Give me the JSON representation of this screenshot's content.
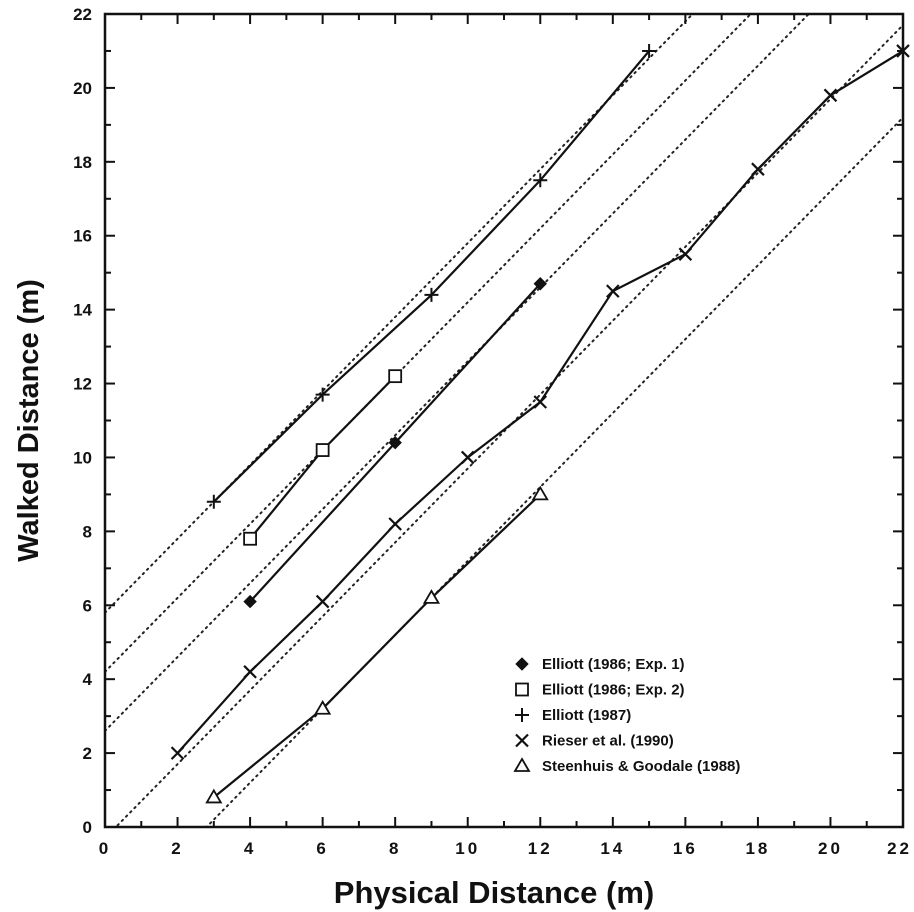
{
  "chart_data": {
    "type": "line",
    "xlabel": "Physical Distance (m)",
    "ylabel": "Walked Distance (m)",
    "xlim": [
      0,
      22
    ],
    "ylim": [
      0,
      22
    ],
    "xticks": [
      "0",
      "2",
      "4",
      "6",
      "8",
      "10",
      "12",
      "14",
      "16",
      "18",
      "20",
      "22"
    ],
    "yticks": [
      "0",
      "2",
      "4",
      "6",
      "8",
      "10",
      "12",
      "14",
      "16",
      "18",
      "20",
      "22"
    ],
    "legend_position": "lower-right",
    "reference_lines": [
      {
        "intercept": 5.8,
        "slope": 1
      },
      {
        "intercept": 4.2,
        "slope": 1
      },
      {
        "intercept": 2.6,
        "slope": 1
      },
      {
        "intercept": -0.3,
        "slope": 1
      },
      {
        "intercept": -2.8,
        "slope": 1
      }
    ],
    "series": [
      {
        "name": "Elliott (1986; Exp. 1)",
        "marker": "diamond-filled",
        "x": [
          4,
          8,
          12
        ],
        "y": [
          6.1,
          10.4,
          14.7
        ]
      },
      {
        "name": "Elliott (1986; Exp. 2)",
        "marker": "square-open",
        "x": [
          4,
          6,
          8
        ],
        "y": [
          7.8,
          10.2,
          12.2
        ]
      },
      {
        "name": "Elliott (1987)",
        "marker": "plus",
        "x": [
          3,
          6,
          9,
          12,
          15
        ],
        "y": [
          8.8,
          11.7,
          14.4,
          17.5,
          21.0
        ]
      },
      {
        "name": "Rieser et al. (1990)",
        "marker": "x",
        "x": [
          2,
          4,
          6,
          8,
          10,
          12,
          14,
          16,
          18,
          20,
          22
        ],
        "y": [
          2.0,
          4.2,
          6.1,
          8.2,
          10.0,
          11.5,
          14.5,
          15.5,
          17.8,
          19.8,
          21.0
        ]
      },
      {
        "name": "Steenhuis & Goodale (1988)",
        "marker": "triangle-open",
        "x": [
          3,
          6,
          9,
          12
        ],
        "y": [
          0.8,
          3.2,
          6.2,
          9.0
        ]
      }
    ]
  }
}
